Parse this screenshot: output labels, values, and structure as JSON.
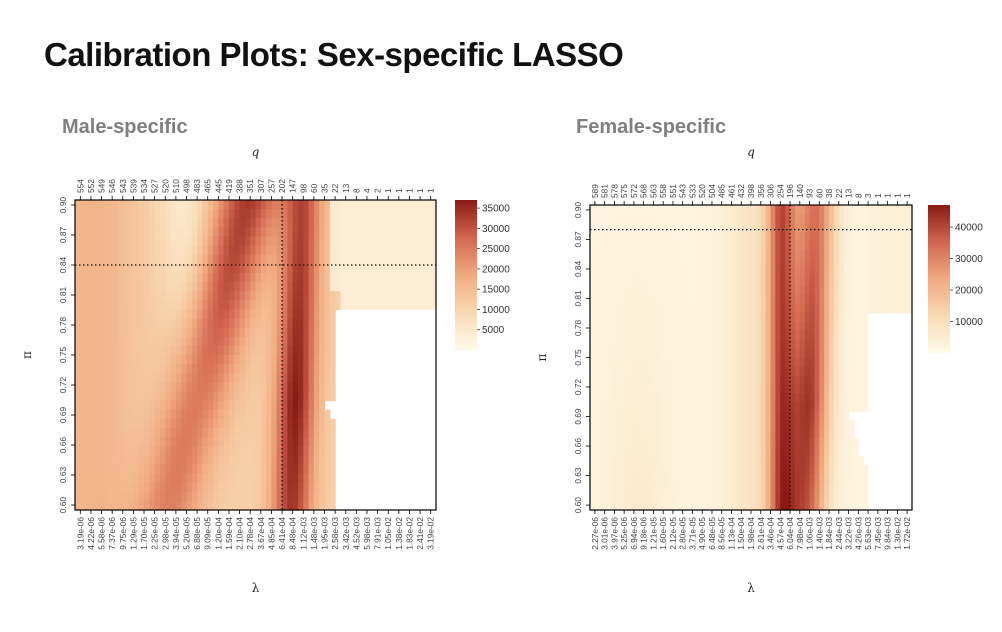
{
  "title": "Calibration Plots: Sex-specific LASSO",
  "colors": {
    "low": "#fffbea",
    "mid": "#f1aa80",
    "high": "#8a1b14",
    "frame": "#000000"
  },
  "chart_data": [
    {
      "type": "heatmap",
      "title": "Male-specific",
      "xlabel": "λ",
      "ylabel": "π",
      "top_label": "q",
      "x_tick_labels": [
        "3.19e-06",
        "4.22e-06",
        "5.58e-06",
        "7.37e-06",
        "9.75e-06",
        "1.29e-05",
        "1.70e-05",
        "2.25e-05",
        "2.98e-05",
        "3.94e-05",
        "5.20e-05",
        "6.88e-05",
        "9.09e-05",
        "1.20e-04",
        "1.59e-04",
        "2.10e-04",
        "2.78e-04",
        "3.67e-04",
        "4.85e-04",
        "6.41e-04",
        "8.48e-04",
        "1.12e-03",
        "1.48e-03",
        "1.95e-03",
        "2.58e-03",
        "3.42e-03",
        "4.52e-03",
        "5.98e-03",
        "7.91e-03",
        "1.05e-02",
        "1.38e-02",
        "1.83e-02",
        "2.41e-02",
        "3.19e-02"
      ],
      "q_tick_labels": [
        "554",
        "552",
        "549",
        "546",
        "543",
        "539",
        "534",
        "527",
        "520",
        "510",
        "498",
        "483",
        "465",
        "445",
        "419",
        "388",
        "351",
        "307",
        "257",
        "202",
        "147",
        "98",
        "60",
        "35",
        "22",
        "13",
        "8",
        "4",
        "2",
        "1",
        "1",
        "1",
        "1",
        "1"
      ],
      "y_tick_labels": [
        "0.90",
        "0.87",
        "0.84",
        "0.81",
        "0.78",
        "0.75",
        "0.72",
        "0.69",
        "0.66",
        "0.63",
        "0.60"
      ],
      "legend_ticks": [
        5000,
        10000,
        15000,
        20000,
        25000,
        30000,
        35000
      ],
      "legend_max": 37000,
      "selected_lambda": "6.41e-04",
      "selected_pi": 0.84
    },
    {
      "type": "heatmap",
      "title": "Female-specific",
      "xlabel": "λ",
      "ylabel": "π",
      "top_label": "q",
      "x_tick_labels": [
        "2.27e-06",
        "3.01e-06",
        "3.97e-06",
        "5.25e-06",
        "6.94e-06",
        "9.18e-06",
        "1.21e-05",
        "1.60e-05",
        "2.12e-05",
        "2.80e-05",
        "3.71e-05",
        "4.90e-05",
        "6.48e-05",
        "8.56e-05",
        "1.13e-04",
        "1.50e-04",
        "1.98e-04",
        "2.61e-04",
        "3.46e-04",
        "4.57e-04",
        "6.04e-04",
        "7.98e-04",
        "1.06e-03",
        "1.40e-03",
        "1.84e-03",
        "2.44e-03",
        "3.22e-03",
        "4.26e-03",
        "5.63e-03",
        "7.45e-03",
        "9.84e-03",
        "1.30e-02",
        "1.72e-02"
      ],
      "q_tick_labels": [
        "589",
        "581",
        "578",
        "575",
        "572",
        "568",
        "563",
        "558",
        "551",
        "543",
        "533",
        "520",
        "504",
        "485",
        "461",
        "432",
        "398",
        "356",
        "306",
        "254",
        "196",
        "140",
        "93",
        "60",
        "38",
        "22",
        "13",
        "8",
        "3",
        "1",
        "1",
        "1",
        "1"
      ],
      "y_tick_labels": [
        "0.90",
        "0.87",
        "0.84",
        "0.81",
        "0.78",
        "0.75",
        "0.72",
        "0.69",
        "0.66",
        "0.63",
        "0.60"
      ],
      "legend_ticks": [
        10000,
        20000,
        30000,
        40000
      ],
      "legend_max": 47000,
      "selected_lambda": "6.04e-04",
      "selected_pi": 0.88
    }
  ]
}
